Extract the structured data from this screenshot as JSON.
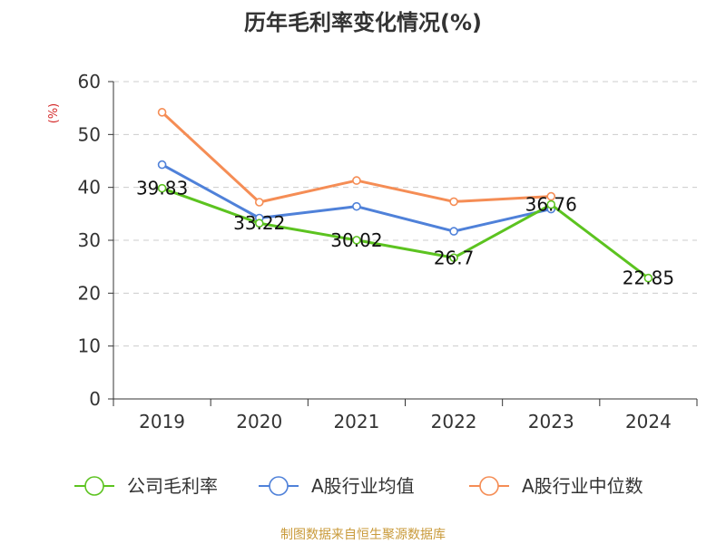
{
  "chart_data": {
    "type": "line",
    "title": "历年毛利率变化情况(%)",
    "ylabel": "(%)",
    "xlabel": "",
    "categories": [
      "2019",
      "2020",
      "2021",
      "2022",
      "2023",
      "2024"
    ],
    "ylim": [
      0,
      60
    ],
    "yticks": [
      0,
      10,
      20,
      30,
      40,
      50,
      60
    ],
    "grid": "horizontal-dashed",
    "legend_position": "bottom",
    "series": [
      {
        "name": "公司毛利率",
        "color": "#5cc320",
        "values": [
          39.83,
          33.22,
          30.02,
          26.7,
          36.76,
          22.85
        ],
        "labels": [
          "39.83",
          "33.22",
          "30.02",
          "26.7",
          "36.76",
          "22.85"
        ]
      },
      {
        "name": "A股行业均值",
        "color": "#4f81d9",
        "values": [
          44.3,
          34.2,
          36.4,
          31.7,
          35.9,
          null
        ]
      },
      {
        "name": "A股行业中位数",
        "color": "#f58d55",
        "values": [
          54.2,
          37.2,
          41.3,
          37.3,
          38.3,
          null
        ]
      }
    ]
  },
  "colors": {
    "axis": "#333333",
    "grid": "#cccccc",
    "ylabel": "#d42a2a",
    "source": "#c99a3a"
  },
  "source": "制图数据来自恒生聚源数据库"
}
